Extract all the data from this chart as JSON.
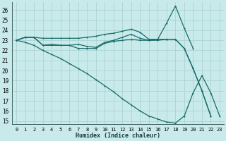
{
  "xlabel": "Humidex (Indice chaleur)",
  "bg_color": "#c8eaea",
  "grid_color": "#a8cece",
  "line_color": "#1a6b6b",
  "xlim": [
    -0.5,
    23.5
  ],
  "ylim": [
    14.7,
    26.8
  ],
  "yticks": [
    15,
    16,
    17,
    18,
    19,
    20,
    21,
    22,
    23,
    24,
    25,
    26
  ],
  "xticks": [
    0,
    1,
    2,
    3,
    4,
    5,
    6,
    7,
    8,
    9,
    10,
    11,
    12,
    13,
    14,
    15,
    16,
    17,
    18,
    19,
    20,
    21,
    22,
    23
  ],
  "series": [
    {
      "x": [
        0,
        1,
        2,
        3,
        4,
        5,
        6,
        7,
        8,
        9,
        10,
        11,
        12,
        13,
        14,
        15,
        16,
        17,
        18,
        19,
        20,
        21,
        22
      ],
      "y": [
        23.0,
        23.3,
        23.3,
        23.2,
        23.2,
        23.2,
        23.2,
        23.2,
        23.3,
        23.4,
        23.6,
        23.7,
        23.9,
        24.1,
        23.8,
        23.1,
        23.1,
        23.1,
        23.1,
        22.2,
        20.2,
        18.0,
        15.5
      ]
    },
    {
      "x": [
        0,
        1,
        2,
        3,
        4,
        5,
        6,
        7,
        8,
        9,
        10,
        11,
        12,
        13,
        14,
        15,
        16,
        17,
        18,
        19,
        20,
        21,
        22
      ],
      "y": [
        23.0,
        23.3,
        23.3,
        22.5,
        22.6,
        22.5,
        22.5,
        22.6,
        22.4,
        22.3,
        22.8,
        23.0,
        23.3,
        23.6,
        23.2,
        23.0,
        23.0,
        23.1,
        23.1,
        22.2,
        20.2,
        18.0,
        15.5
      ]
    },
    {
      "x": [
        0,
        1,
        2,
        3,
        4,
        5,
        6,
        7,
        8,
        9,
        10,
        11,
        12,
        13,
        14,
        15,
        16,
        17,
        18,
        19,
        20
      ],
      "y": [
        23.0,
        23.3,
        23.3,
        22.5,
        22.5,
        22.5,
        22.5,
        22.2,
        22.2,
        22.2,
        22.7,
        22.9,
        23.0,
        23.1,
        23.0,
        23.0,
        23.1,
        24.7,
        26.4,
        24.2,
        22.2
      ]
    },
    {
      "x": [
        0,
        1,
        2,
        3,
        4,
        5,
        6,
        7,
        8,
        9,
        10,
        11,
        12,
        13,
        14,
        15,
        16,
        17,
        18,
        19,
        20,
        21,
        22,
        23
      ],
      "y": [
        23.0,
        22.8,
        22.5,
        22.0,
        21.6,
        21.2,
        20.7,
        20.2,
        19.7,
        19.1,
        18.5,
        17.9,
        17.2,
        16.6,
        16.0,
        15.5,
        15.2,
        14.9,
        14.8,
        15.5,
        17.8,
        19.5,
        17.8,
        15.5
      ]
    }
  ]
}
